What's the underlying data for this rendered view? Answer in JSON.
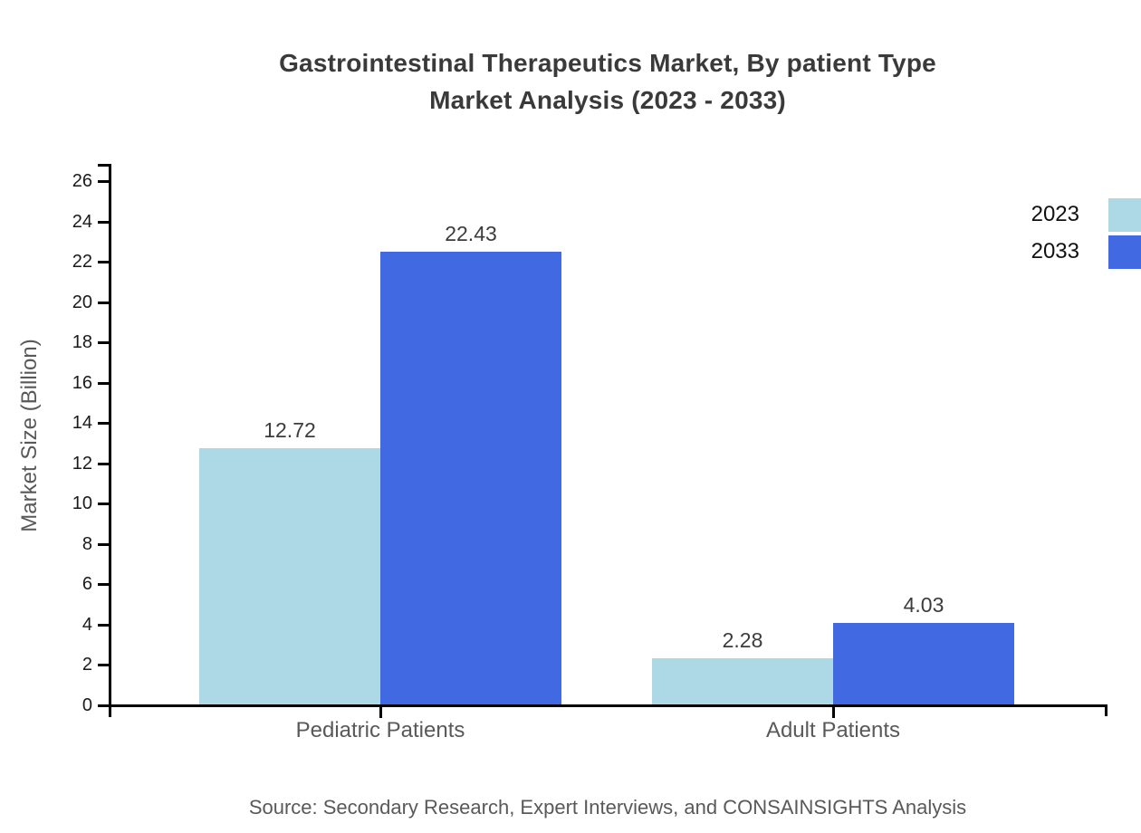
{
  "title": {
    "line1": "Gastrointestinal Therapeutics Market, By patient Type",
    "line2": "Market Analysis (2023 - 2033)"
  },
  "source": "Source: Secondary Research, Expert Interviews, and CONSAINSIGHTS Analysis",
  "legend": {
    "position": "upper right",
    "items": [
      {
        "label": "2023",
        "color": "#ADD8E6"
      },
      {
        "label": "2033",
        "color": "#4169E1"
      }
    ]
  },
  "chart_data": {
    "type": "bar",
    "title": "Gastrointestinal Therapeutics Market, By patient Type Market Analysis (2023 - 2033)",
    "categories": [
      "Pediatric Patients",
      "Adult Patients"
    ],
    "series": [
      {
        "name": "2023",
        "color": "#ADD8E6",
        "values": [
          12.72,
          2.28
        ]
      },
      {
        "name": "2033",
        "color": "#4169E1",
        "values": [
          22.43,
          4.03
        ]
      }
    ],
    "value_labels": [
      [
        "12.72",
        "2.28"
      ],
      [
        "22.43",
        "4.03"
      ]
    ],
    "xlabel": "",
    "ylabel": "Market Size (Billion)",
    "ylim": [
      0,
      26
    ],
    "yticks": [
      0,
      2,
      4,
      6,
      8,
      10,
      12,
      14,
      16,
      18,
      20,
      22,
      24,
      26
    ],
    "grid": false,
    "legend_position": "upper right"
  },
  "colors": {
    "series_2023": "#ADD8E6",
    "series_2033": "#4169E1",
    "title_text": "#3A3A3A",
    "axis_text": "#1A1A1A",
    "muted_text": "#595959",
    "value_text": "#3C3C3C",
    "axis_line": "#000000"
  }
}
